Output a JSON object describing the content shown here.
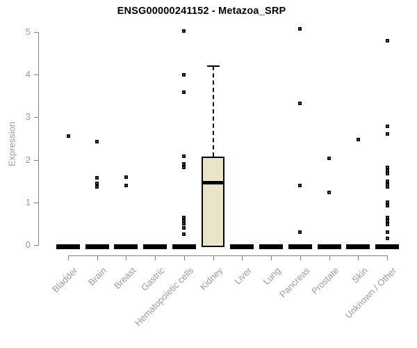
{
  "chart_data": {
    "type": "boxplot",
    "title": "ENSG00000241152 - Metazoa_SRP",
    "ylabel": "Expression",
    "xlabel": "",
    "ylim": [
      0,
      5
    ],
    "yticks": [
      0,
      1,
      2,
      3,
      4,
      5
    ],
    "grid": false,
    "legend": null,
    "categories": [
      "Bladder",
      "Brain",
      "Breast",
      "Gastric",
      "Hematopoietic cells",
      "Kidney",
      "Liver",
      "Lung",
      "Pancreas",
      "Prostate",
      "Skin",
      "Unknown / Other"
    ],
    "boxes": [
      {
        "category": "Bladder",
        "q1": 0,
        "median": 0,
        "q3": 0,
        "whisker_low": 0,
        "whisker_high": 0,
        "outliers": [
          2.55
        ]
      },
      {
        "category": "Brain",
        "q1": 0,
        "median": 0,
        "q3": 0,
        "whisker_low": 0,
        "whisker_high": 0,
        "outliers": [
          2.43,
          1.58,
          1.45,
          1.37
        ]
      },
      {
        "category": "Breast",
        "q1": 0,
        "median": 0,
        "q3": 0,
        "whisker_low": 0,
        "whisker_high": 0,
        "outliers": [
          1.6,
          1.39
        ]
      },
      {
        "category": "Gastric",
        "q1": 0,
        "median": 0,
        "q3": 0,
        "whisker_low": 0,
        "whisker_high": 0,
        "outliers": []
      },
      {
        "category": "Hematopoietic cells",
        "q1": 0,
        "median": 0,
        "q3": 0,
        "whisker_low": 0,
        "whisker_high": 0,
        "outliers": [
          5.02,
          3.99,
          3.58,
          2.09,
          1.91,
          1.83,
          0.65,
          0.57,
          0.5,
          0.4,
          0.25
        ]
      },
      {
        "category": "Kidney",
        "q1": 0,
        "median": 1.47,
        "q3": 2.08,
        "whisker_low": 0,
        "whisker_high": 4.2,
        "outliers": []
      },
      {
        "category": "Liver",
        "q1": 0,
        "median": 0,
        "q3": 0,
        "whisker_low": 0,
        "whisker_high": 0,
        "outliers": []
      },
      {
        "category": "Lung",
        "q1": 0,
        "median": 0,
        "q3": 0,
        "whisker_low": 0,
        "whisker_high": 0,
        "outliers": []
      },
      {
        "category": "Pancreas",
        "q1": 0,
        "median": 0,
        "q3": 0,
        "whisker_low": 0,
        "whisker_high": 0,
        "outliers": [
          5.07,
          3.32,
          1.39,
          0.31
        ]
      },
      {
        "category": "Prostate",
        "q1": 0,
        "median": 0,
        "q3": 0,
        "whisker_low": 0,
        "whisker_high": 0,
        "outliers": [
          2.03,
          1.23
        ]
      },
      {
        "category": "Skin",
        "q1": 0,
        "median": 0,
        "q3": 0,
        "whisker_low": 0,
        "whisker_high": 0,
        "outliers": [
          2.47
        ]
      },
      {
        "category": "Unknown / Other",
        "q1": 0,
        "median": 0,
        "q3": 0,
        "whisker_low": 0,
        "whisker_high": 0,
        "outliers": [
          4.8,
          2.79,
          2.6,
          1.82,
          1.74,
          1.67,
          1.5,
          1.42,
          1.36,
          1.0,
          0.92,
          0.65,
          0.57,
          0.49,
          0.31,
          0.16
        ]
      }
    ],
    "colors": {
      "box_fill": "#EAE5C9",
      "box_border": "#000000",
      "axis": "#808080",
      "tick_text": "#9A9A9A",
      "title_text": "#000000",
      "point": "#000000",
      "background": "#FFFFFF"
    }
  }
}
